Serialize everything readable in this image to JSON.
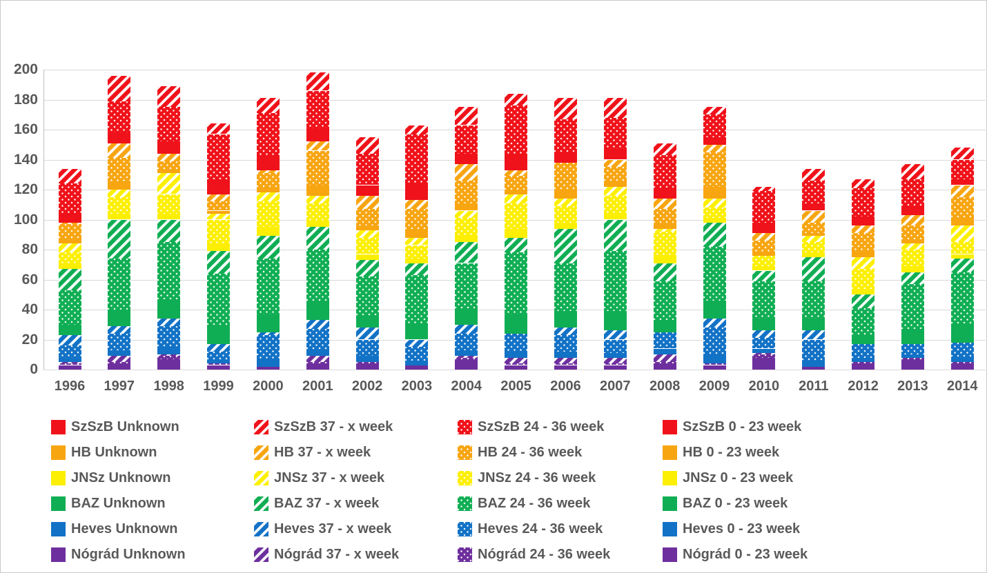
{
  "chart_data": {
    "type": "bar",
    "stacked": true,
    "title": "",
    "xlabel": "",
    "ylabel": "",
    "grid": true,
    "legend_position": "bottom",
    "ylim": [
      0,
      200
    ],
    "ytick_step": 20,
    "categories": [
      "1996",
      "1997",
      "1998",
      "1999",
      "2000",
      "2001",
      "2002",
      "2003",
      "2004",
      "2005",
      "2006",
      "2007",
      "2008",
      "2009",
      "2010",
      "2011",
      "2012",
      "2013",
      "2014"
    ],
    "county_colors": {
      "SzSzB": "#f0121a",
      "HB": "#f7a511",
      "JNSz": "#fcef04",
      "BAZ": "#10ae54",
      "Heves": "#1272c6",
      "Nógrád": "#6e2f9e"
    },
    "series": [
      {
        "name": "Nógrád 0 - 23 week",
        "county": "Nógrád",
        "group": "0 - 23 week",
        "pattern": "solid",
        "values": [
          3,
          4,
          7,
          3,
          2,
          4,
          4,
          3,
          6,
          3,
          3,
          3,
          4,
          3,
          8,
          2,
          4,
          6,
          4
        ]
      },
      {
        "name": "Nógrád 24 - 36 week",
        "county": "Nógrád",
        "group": "24 - 36 week",
        "pattern": "dotted",
        "values": [
          1,
          1,
          2,
          1,
          0,
          1,
          1,
          0,
          2,
          1,
          1,
          1,
          1,
          1,
          2,
          0,
          1,
          2,
          1
        ]
      },
      {
        "name": "Nógrád 37 - x week",
        "county": "Nógrád",
        "group": "37 - x week",
        "pattern": "striped",
        "values": [
          1,
          4,
          1,
          0,
          0,
          4,
          0,
          0,
          1,
          4,
          4,
          4,
          5,
          0,
          1,
          0,
          0,
          0,
          0
        ]
      },
      {
        "name": "Nógrád Unknown",
        "county": "Nógrád",
        "group": "Unknown",
        "pattern": "solid",
        "values": [
          0,
          0,
          0,
          0,
          0,
          0,
          0,
          0,
          0,
          0,
          0,
          0,
          0,
          0,
          0,
          0,
          0,
          0,
          0
        ]
      },
      {
        "name": "Heves 0 - 23 week",
        "county": "Heves",
        "group": "0 - 23 week",
        "pattern": "solid",
        "values": [
          3,
          4,
          5,
          2,
          5,
          4,
          4,
          3,
          4,
          4,
          4,
          3,
          4,
          6,
          3,
          4,
          3,
          2,
          3
        ]
      },
      {
        "name": "Heves 24 - 36 week",
        "county": "Heves",
        "group": "24 - 36 week",
        "pattern": "dotted",
        "values": [
          8,
          11,
          14,
          6,
          16,
          14,
          11,
          9,
          11,
          12,
          11,
          9,
          11,
          18,
          7,
          14,
          9,
          7,
          10
        ]
      },
      {
        "name": "Heves 37 - x week",
        "county": "Heves",
        "group": "37 - x week",
        "pattern": "striped",
        "values": [
          7,
          5,
          5,
          5,
          2,
          6,
          8,
          5,
          6,
          0,
          5,
          6,
          0,
          6,
          5,
          6,
          0,
          0,
          0
        ]
      },
      {
        "name": "Heves Unknown",
        "county": "Heves",
        "group": "Unknown",
        "pattern": "solid",
        "values": [
          0,
          0,
          0,
          0,
          0,
          0,
          0,
          0,
          0,
          0,
          0,
          0,
          0,
          0,
          0,
          0,
          0,
          0,
          0
        ]
      },
      {
        "name": "BAZ 0 - 23 week",
        "county": "BAZ",
        "group": "0 - 23 week",
        "pattern": "solid",
        "values": [
          7,
          11,
          13,
          12,
          12,
          12,
          8,
          11,
          10,
          13,
          11,
          13,
          8,
          12,
          8,
          8,
          6,
          10,
          12
        ]
      },
      {
        "name": "BAZ 24 - 36 week",
        "county": "BAZ",
        "group": "24 - 36 week",
        "pattern": "dotted",
        "values": [
          23,
          34,
          38,
          35,
          37,
          35,
          26,
          32,
          31,
          41,
          32,
          40,
          26,
          36,
          25,
          25,
          18,
          30,
          35
        ]
      },
      {
        "name": "BAZ 37 - x week",
        "county": "BAZ",
        "group": "37 - x week",
        "pattern": "striped",
        "values": [
          14,
          26,
          15,
          15,
          15,
          15,
          11,
          8,
          14,
          10,
          23,
          21,
          12,
          16,
          7,
          16,
          9,
          8,
          9
        ]
      },
      {
        "name": "BAZ Unknown",
        "county": "BAZ",
        "group": "Unknown",
        "pattern": "solid",
        "values": [
          0,
          0,
          0,
          0,
          0,
          0,
          0,
          0,
          0,
          0,
          0,
          0,
          0,
          0,
          0,
          0,
          0,
          0,
          0
        ]
      },
      {
        "name": "JNSz 0 - 23 week",
        "county": "JNSz",
        "group": "0 - 23 week",
        "pattern": "solid",
        "values": [
          3,
          4,
          4,
          5,
          6,
          4,
          4,
          3,
          4,
          6,
          4,
          4,
          5,
          3,
          3,
          3,
          4,
          4,
          3
        ]
      },
      {
        "name": "JNSz 24 - 36 week",
        "county": "JNSz",
        "group": "24 - 36 week",
        "pattern": "dotted",
        "values": [
          8,
          11,
          13,
          16,
          17,
          12,
          11,
          9,
          12,
          17,
          11,
          12,
          16,
          7,
          7,
          7,
          13,
          11,
          8
        ]
      },
      {
        "name": "JNSz 37 - x week",
        "county": "JNSz",
        "group": "37 - x week",
        "pattern": "striped",
        "values": [
          6,
          5,
          14,
          4,
          6,
          5,
          5,
          5,
          5,
          6,
          5,
          6,
          2,
          6,
          0,
          4,
          8,
          4,
          11
        ]
      },
      {
        "name": "JNSz Unknown",
        "county": "JNSz",
        "group": "Unknown",
        "pattern": "solid",
        "values": [
          0,
          0,
          0,
          0,
          0,
          0,
          0,
          0,
          0,
          0,
          0,
          0,
          0,
          0,
          0,
          0,
          0,
          0,
          0
        ]
      },
      {
        "name": "HB 0 - 23 week",
        "county": "HB",
        "group": "0 - 23 week",
        "pattern": "solid",
        "values": [
          3,
          5,
          2,
          2,
          3,
          7,
          3,
          5,
          5,
          3,
          6,
          3,
          3,
          8,
          2,
          2,
          4,
          3,
          5
        ]
      },
      {
        "name": "HB 24 - 36 week",
        "county": "HB",
        "group": "24 - 36 week",
        "pattern": "dotted",
        "values": [
          10,
          16,
          6,
          6,
          10,
          23,
          11,
          14,
          15,
          9,
          18,
          10,
          10,
          23,
          8,
          7,
          12,
          9,
          14
        ]
      },
      {
        "name": "HB 37 - x week",
        "county": "HB",
        "group": "37 - x week",
        "pattern": "striped",
        "values": [
          1,
          10,
          5,
          5,
          2,
          6,
          9,
          6,
          11,
          4,
          0,
          5,
          7,
          5,
          5,
          8,
          5,
          7,
          8
        ]
      },
      {
        "name": "HB Unknown",
        "county": "HB",
        "group": "Unknown",
        "pattern": "solid",
        "values": [
          0,
          0,
          0,
          0,
          0,
          0,
          0,
          0,
          0,
          0,
          0,
          0,
          0,
          0,
          0,
          0,
          0,
          0,
          0
        ]
      },
      {
        "name": "SzSzB 0 - 23 week",
        "county": "SzSzB",
        "group": "0 - 23 week",
        "pattern": "solid",
        "values": [
          6,
          7,
          8,
          10,
          10,
          9,
          7,
          11,
          7,
          11,
          7,
          7,
          7,
          5,
          7,
          5,
          6,
          6,
          4
        ]
      },
      {
        "name": "SzSzB 24 - 36 week",
        "county": "SzSzB",
        "group": "24 - 36 week",
        "pattern": "dotted",
        "values": [
          20,
          21,
          23,
          30,
          28,
          25,
          21,
          33,
          19,
          32,
          22,
          21,
          22,
          15,
          21,
          15,
          19,
          18,
          13
        ]
      },
      {
        "name": "SzSzB 37 - x week",
        "county": "SzSzB",
        "group": "37 - x week",
        "pattern": "striped",
        "values": [
          10,
          17,
          14,
          7,
          10,
          12,
          11,
          6,
          12,
          8,
          14,
          13,
          8,
          5,
          3,
          8,
          6,
          10,
          8
        ]
      },
      {
        "name": "SzSzB Unknown",
        "county": "SzSzB",
        "group": "Unknown",
        "pattern": "solid",
        "values": [
          0,
          0,
          0,
          0,
          0,
          0,
          0,
          0,
          0,
          0,
          0,
          0,
          0,
          0,
          0,
          0,
          0,
          0,
          0
        ]
      }
    ],
    "legend_items": [
      {
        "label": "SzSzB Unknown",
        "county": "SzSzB",
        "pattern": "solid"
      },
      {
        "label": "SzSzB 37 - x week",
        "county": "SzSzB",
        "pattern": "striped"
      },
      {
        "label": "SzSzB 24 - 36 week",
        "county": "SzSzB",
        "pattern": "dotted"
      },
      {
        "label": "SzSzB 0 - 23 week",
        "county": "SzSzB",
        "pattern": "solid"
      },
      {
        "label": "HB Unknown",
        "county": "HB",
        "pattern": "solid"
      },
      {
        "label": "HB 37 - x week",
        "county": "HB",
        "pattern": "striped"
      },
      {
        "label": "HB 24 - 36 week",
        "county": "HB",
        "pattern": "dotted"
      },
      {
        "label": "HB 0 - 23 week",
        "county": "HB",
        "pattern": "solid"
      },
      {
        "label": "JNSz Unknown",
        "county": "JNSz",
        "pattern": "solid"
      },
      {
        "label": "JNSz 37 - x week",
        "county": "JNSz",
        "pattern": "striped"
      },
      {
        "label": "JNSz 24 - 36 week",
        "county": "JNSz",
        "pattern": "dotted"
      },
      {
        "label": "JNSz 0 - 23 week",
        "county": "JNSz",
        "pattern": "solid"
      },
      {
        "label": "BAZ Unknown",
        "county": "BAZ",
        "pattern": "solid"
      },
      {
        "label": "BAZ 37 - x week",
        "county": "BAZ",
        "pattern": "striped"
      },
      {
        "label": "BAZ 24 - 36 week",
        "county": "BAZ",
        "pattern": "dotted"
      },
      {
        "label": "BAZ 0 - 23 week",
        "county": "BAZ",
        "pattern": "solid"
      },
      {
        "label": "Heves Unknown",
        "county": "Heves",
        "pattern": "solid"
      },
      {
        "label": "Heves 37 - x week",
        "county": "Heves",
        "pattern": "striped"
      },
      {
        "label": "Heves 24 - 36 week",
        "county": "Heves",
        "pattern": "dotted"
      },
      {
        "label": "Heves 0 - 23 week",
        "county": "Heves",
        "pattern": "solid"
      },
      {
        "label": "Nógrád Unknown",
        "county": "Nógrád",
        "pattern": "solid"
      },
      {
        "label": "Nógrád 37 - x week",
        "county": "Nógrád",
        "pattern": "striped"
      },
      {
        "label": "Nógrád 24 - 36 week",
        "county": "Nógrád",
        "pattern": "dotted"
      },
      {
        "label": "Nógrád 0 - 23 week",
        "county": "Nógrád",
        "pattern": "solid"
      }
    ]
  }
}
